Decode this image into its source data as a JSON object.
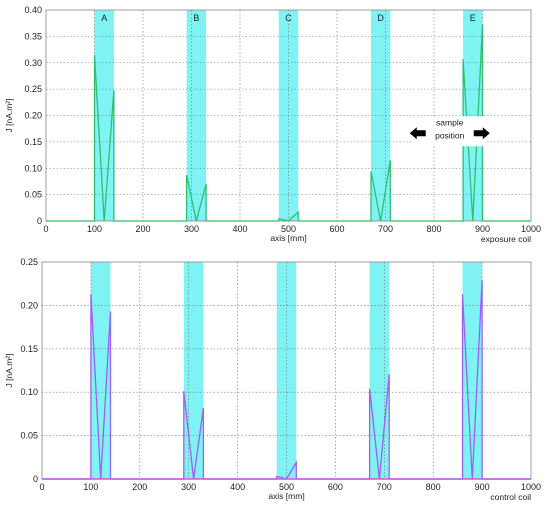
{
  "chart_data": [
    {
      "type": "line",
      "title": "",
      "xlabel": "axis [mm]",
      "ylabel": "J [nA.m²]",
      "corner_label": "exposure coil",
      "xlim": [
        0,
        1000
      ],
      "ylim": [
        0,
        0.4
      ],
      "xticks": [
        "0",
        "100",
        "200",
        "300",
        "400",
        "500",
        "600",
        "700",
        "800",
        "900",
        "1000"
      ],
      "yticks": [
        "0",
        "0.05",
        "0.10",
        "0.15",
        "0.20",
        "0.25",
        "0.30",
        "0.35",
        "0.40"
      ],
      "grid": true,
      "line_color": "#2fbf71",
      "band_color": "#7ff3f3",
      "bands": [
        {
          "label": "A",
          "x0": 100,
          "x1": 140
        },
        {
          "label": "B",
          "x0": 290,
          "x1": 330
        },
        {
          "label": "C",
          "x0": 480,
          "x1": 520
        },
        {
          "label": "D",
          "x0": 670,
          "x1": 710
        },
        {
          "label": "E",
          "x0": 860,
          "x1": 900
        }
      ],
      "annotation": {
        "text_line1": "sample",
        "text_line2": "position",
        "x_left": 750,
        "x_right": 915,
        "y": 0.172
      },
      "x": [
        0,
        100,
        100,
        120,
        140,
        140,
        290,
        290,
        310,
        330,
        330,
        480,
        480,
        500,
        520,
        520,
        670,
        670,
        690,
        710,
        710,
        860,
        860,
        880,
        900,
        900,
        1000
      ],
      "y": [
        0,
        0,
        0.315,
        0.0,
        0.248,
        0,
        0,
        0.087,
        0.0,
        0.07,
        0,
        0,
        0.004,
        0.0,
        0.017,
        0,
        0,
        0.094,
        0.0,
        0.115,
        0,
        0,
        0.307,
        0.0,
        0.372,
        0,
        0
      ]
    },
    {
      "type": "line",
      "title": "",
      "xlabel": "axis [mm]",
      "ylabel": "J [nA.m²]",
      "corner_label": "control coil",
      "xlim": [
        0,
        1000
      ],
      "ylim": [
        0,
        0.25
      ],
      "xticks": [
        "0",
        "100",
        "200",
        "300",
        "400",
        "500",
        "600",
        "700",
        "800",
        "900",
        "1000"
      ],
      "yticks": [
        "0",
        "0.05",
        "0.10",
        "0.15",
        "0.20",
        "0.25"
      ],
      "grid": true,
      "line_color": "#a05ff0",
      "baseline_color": "#ff44cc",
      "band_color": "#7ff3f3",
      "bands": [
        {
          "label": "",
          "x0": 100,
          "x1": 140
        },
        {
          "label": "",
          "x0": 290,
          "x1": 330
        },
        {
          "label": "",
          "x0": 480,
          "x1": 520
        },
        {
          "label": "",
          "x0": 670,
          "x1": 710
        },
        {
          "label": "",
          "x0": 860,
          "x1": 900
        }
      ],
      "x": [
        0,
        100,
        100,
        120,
        140,
        140,
        290,
        290,
        310,
        330,
        330,
        480,
        480,
        500,
        520,
        520,
        670,
        670,
        690,
        710,
        710,
        860,
        860,
        880,
        900,
        900,
        1000
      ],
      "y": [
        0,
        0,
        0.213,
        0.0,
        0.193,
        0,
        0,
        0.101,
        0.0,
        0.082,
        0,
        0,
        0.003,
        0.0,
        0.019,
        0,
        0,
        0.104,
        0.0,
        0.121,
        0,
        0,
        0.213,
        0.0,
        0.229,
        0,
        0
      ]
    }
  ]
}
